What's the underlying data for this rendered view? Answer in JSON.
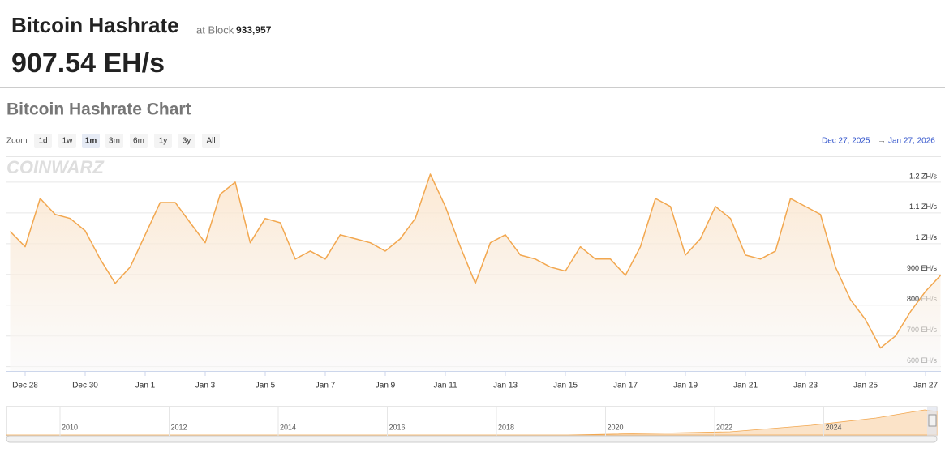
{
  "header": {
    "title": "Bitcoin Hashrate",
    "block_prefix": "at Block",
    "block": "933,957",
    "hashrate": "907.54 EH/s"
  },
  "chart_heading": "Bitcoin Hashrate Chart",
  "zoom": {
    "label": "Zoom",
    "buttons": [
      "1d",
      "1w",
      "1m",
      "3m",
      "6m",
      "1y",
      "3y",
      "All"
    ],
    "selected": "1m"
  },
  "range": {
    "from": "Dec 27, 2025",
    "arrow": "→",
    "to": "Jan 27, 2026"
  },
  "watermark": "COINWARZ",
  "navigator": {
    "labels": [
      "2010",
      "2012",
      "2014",
      "2016",
      "2018",
      "2020",
      "2022",
      "2024"
    ]
  },
  "chart_data": {
    "type": "line",
    "color": "#f2a74f",
    "categories": [
      null,
      "Dec 28",
      null,
      null,
      null,
      "Dec 30",
      null,
      null,
      null,
      "Jan 1",
      null,
      null,
      null,
      "Jan 3",
      null,
      null,
      null,
      "Jan 5",
      null,
      null,
      null,
      "Jan 7",
      null,
      null,
      null,
      "Jan 9",
      null,
      null,
      null,
      "Jan 11",
      null,
      null,
      null,
      "Jan 13",
      null,
      null,
      null,
      "Jan 15",
      null,
      null,
      null,
      "Jan 17",
      null,
      null,
      null,
      "Jan 19",
      null,
      null,
      null,
      "Jan 21",
      null,
      null,
      null,
      "Jan 23",
      null,
      null,
      null,
      "Jan 25",
      null,
      null,
      null,
      "Jan 27",
      null
    ],
    "values": [
      1040,
      990,
      1147,
      1095,
      1082,
      1042,
      950,
      871,
      924,
      1029,
      1134,
      1134,
      1068,
      1003,
      1161,
      1200,
      1003,
      1082,
      1068,
      950,
      976,
      950,
      1029,
      1016,
      1003,
      976,
      1016,
      1082,
      1226,
      1121,
      990,
      871,
      1003,
      1029,
      963,
      950,
      924,
      911,
      990,
      950,
      950,
      897,
      990,
      1147,
      1121,
      963,
      1016,
      1121,
      1082,
      963,
      950,
      976,
      1147,
      1121,
      1095,
      924,
      818,
      753,
      661,
      700,
      779,
      845,
      897
    ],
    "ylim": [
      586,
      1284
    ],
    "yticks": [
      {
        "value": 600,
        "label": "600 EH/s"
      },
      {
        "value": 700,
        "label": "700 EH/s"
      },
      {
        "value": 800,
        "label": "800 EH/s"
      },
      {
        "value": 900,
        "label": "900 EH/s"
      },
      {
        "value": 1000,
        "label": "1 ZH/s"
      },
      {
        "value": 1100,
        "label": "1.1 ZH/s"
      },
      {
        "value": 1200,
        "label": "1.2 ZH/s"
      }
    ],
    "grid": true
  }
}
